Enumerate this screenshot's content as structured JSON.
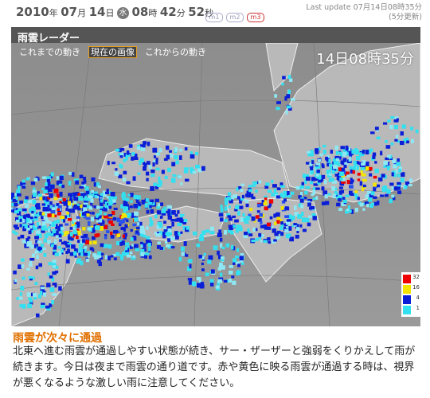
{
  "header": {
    "year": "2010",
    "year_unit": "年",
    "month": "07",
    "month_unit": "月",
    "day": "14",
    "day_unit": "日",
    "weekday": "水",
    "hour": "08",
    "hour_unit": "時",
    "minute": "42",
    "minute_unit": "分",
    "second": "52",
    "second_unit": "秒",
    "buttons": [
      "m1",
      "m2",
      "m3"
    ],
    "active_button": 2,
    "last_update": "Last update  07月14日08時35分",
    "update_interval": "(5分更新)"
  },
  "panel": {
    "title": "雨雲レーダー",
    "tabs": [
      "これまでの動き",
      "現在の画像",
      "これからの動き"
    ],
    "active_tab": 1,
    "map_time": "14日08時35分",
    "legend": [
      {
        "color": "#ee0000",
        "value": 32
      },
      {
        "color": "#f4e400",
        "value": 16
      },
      {
        "color": "#0a1ed8",
        "value": 4
      },
      {
        "color": "#33e0f0",
        "value": 1
      }
    ]
  },
  "caption": {
    "title": "雨雲が次々に通過",
    "body": "北東へ進む雨雲が通過しやすい状態が続き、サー・ザーザーと強弱をくりかえして雨が続きます。今日は夜まで雨雲の通り道です。赤や黄色に映る雨雲が通過する時は、視界が悪くなるような激しい雨に注意してください。"
  }
}
